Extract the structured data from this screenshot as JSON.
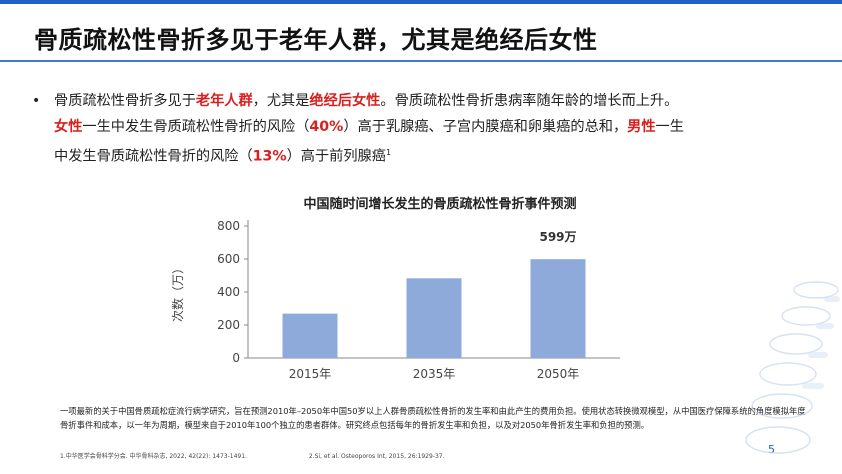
{
  "slide": {
    "title": "骨质疏松性骨折多见于老年人群，尤其是绝经后女性",
    "page_number": "5"
  },
  "bullet": {
    "line1": {
      "p1": "骨质疏松性骨折多见于",
      "r1": "老年人群",
      "p2": "，尤其是",
      "r2": "绝经后女性",
      "p3": "。骨质疏松性骨折患病率随年龄的增长而上升。"
    },
    "line2": {
      "r1": "女性",
      "p1": "一生中发生骨质疏松性骨折的风险（",
      "r2": "40%",
      "p2": "）高于乳腺癌、子宫内膜癌和卵巢癌的总和，",
      "r3": "男性",
      "p3": "一生"
    },
    "line3": {
      "p1": "中发生骨质疏松性骨折的风险（",
      "r1": "13%",
      "p2": "）高于前列腺癌",
      "sup": "1"
    }
  },
  "chart_data": {
    "type": "bar",
    "title": "中国随时间增长发生的骨质疏松性骨折事件预测",
    "ylabel": "次数（万）",
    "xlabel": "",
    "categories": [
      "2015年",
      "2035年",
      "2050年"
    ],
    "values": [
      269,
      483,
      599
    ],
    "ylim": [
      0,
      800
    ],
    "yticks": [
      "0",
      "200",
      "400",
      "600",
      "800"
    ],
    "data_labels": [
      "",
      "",
      "599万"
    ],
    "bar_color": "#8eaadb",
    "grid": false
  },
  "footnote": {
    "text": "一项最新的关于中国骨质疏松症流行病学研究，旨在预测2010年–2050年中国50岁以上人群骨质疏松性骨折的发生率和由此产生的费用负担。使用状态转换微观模型，从中国医疗保障系统的角度模拟年度骨折事件和成本，以一年为周期，模型来自于2010年100个独立的患者群体。研究终点包括每年的骨折发生率和负担，以及对2050年骨折发生率和负担的预测。"
  },
  "references": [
    "1.中华医学会骨科学分会. 中华骨科杂志, 2022, 42(22): 1473-1491.",
    "2.Si, et al. Osteoporos Int, 2015, 26:1929-37."
  ],
  "colors": {
    "accent": "#1f63c6",
    "highlight": "#d9201f"
  }
}
